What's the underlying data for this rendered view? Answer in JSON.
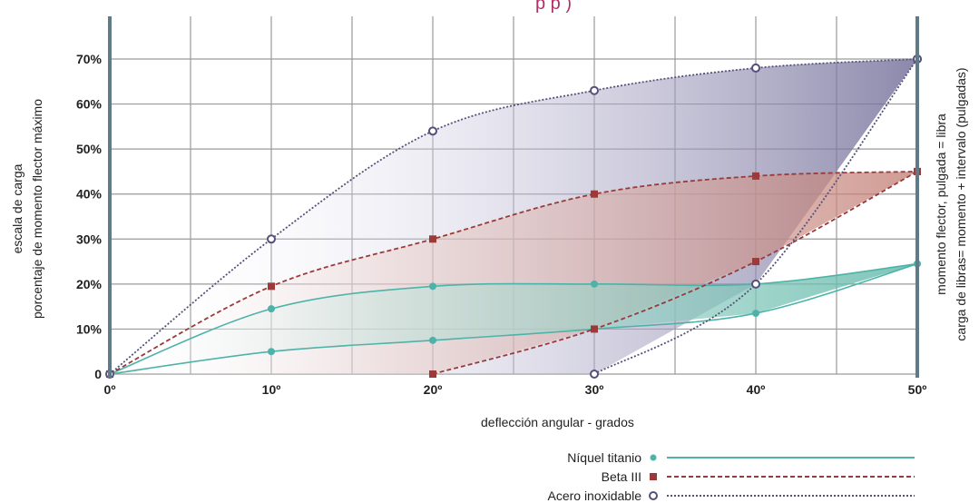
{
  "chart_data": {
    "type": "line",
    "title": "",
    "top_text": "p                    p             )",
    "xlabel": "deflección angular - grados",
    "ylabel_lines": [
      "escala de carga",
      "porcentaje de momento flector máximo"
    ],
    "right_label_lines": [
      "momento flector, pulgada = libra",
      "carga de libras= momento + intervalo (pulgadas)"
    ],
    "x_ticks": [
      "0º",
      "10º",
      "20º",
      "30º",
      "40º",
      "50º"
    ],
    "y_ticks": [
      "0",
      "10%",
      "20%",
      "30%",
      "40%",
      "50%",
      "60%",
      "70%"
    ],
    "xlim": [
      0,
      50
    ],
    "ylim": [
      0,
      70
    ],
    "grid": true,
    "legend_position": "bottom-right",
    "series": [
      {
        "name": "Níquel titanio",
        "color": "#4db3a8",
        "marker": "circle-filled",
        "line_style": "solid",
        "loading": {
          "x": [
            0,
            10,
            20,
            30,
            40,
            50
          ],
          "y": [
            0,
            14.5,
            19.5,
            20,
            20,
            24.5
          ]
        },
        "unloading": {
          "x": [
            0,
            10,
            20,
            30,
            40,
            50
          ],
          "y": [
            0,
            5,
            7.5,
            10,
            13.5,
            24.5
          ]
        }
      },
      {
        "name": "Beta III",
        "color": "#9b3a38",
        "marker": "square",
        "line_style": "dashed",
        "loading": {
          "x": [
            0,
            10,
            20,
            30,
            40,
            50
          ],
          "y": [
            0,
            19.5,
            30,
            40,
            44,
            45
          ]
        },
        "unloading": {
          "x": [
            20,
            30,
            40,
            50
          ],
          "y": [
            0,
            10,
            25,
            45
          ]
        }
      },
      {
        "name": "Acero inoxidable",
        "color": "#55507a",
        "marker": "circle-open",
        "line_style": "dotted",
        "loading": {
          "x": [
            0,
            10,
            20,
            30,
            40,
            50
          ],
          "y": [
            0,
            30,
            54,
            63,
            68,
            70
          ]
        },
        "unloading": {
          "x": [
            30,
            40,
            50
          ],
          "y": [
            0,
            20,
            70
          ]
        }
      }
    ]
  }
}
